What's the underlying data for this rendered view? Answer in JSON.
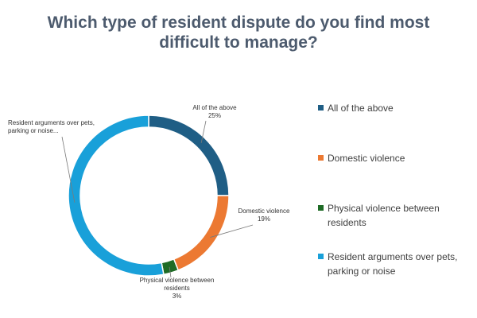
{
  "title_lines": [
    "Which type of resident dispute do you find most",
    "difficult to manage?"
  ],
  "chart_data": {
    "type": "pie",
    "variant": "donut",
    "title": "Which type of resident dispute do you find most difficult to manage?",
    "legend_position": "right",
    "categories": [
      "All of the above",
      "Domestic violence",
      "Physical violence between residents",
      "Resident arguments over pets, parking or noise"
    ],
    "values": [
      25,
      19,
      3,
      53
    ],
    "colors": [
      "#1f5e85",
      "#ec7932",
      "#1e6b25",
      "#19a0d9"
    ],
    "data_labels": [
      {
        "name": [
          "All of the above"
        ],
        "value": "25%"
      },
      {
        "name": [
          "Domestic violence"
        ],
        "value": "19%"
      },
      {
        "name": [
          "Physical violence between",
          "residents"
        ],
        "value": "3%"
      },
      {
        "name": [
          "Resident arguments over pets,",
          "parking or noise..."
        ],
        "value": ""
      }
    ],
    "legend": [
      [
        "All of the above"
      ],
      [
        "Domestic violence"
      ],
      [
        "Physical violence between",
        "residents"
      ],
      [
        "Resident arguments over pets,",
        "parking or noise"
      ]
    ]
  }
}
